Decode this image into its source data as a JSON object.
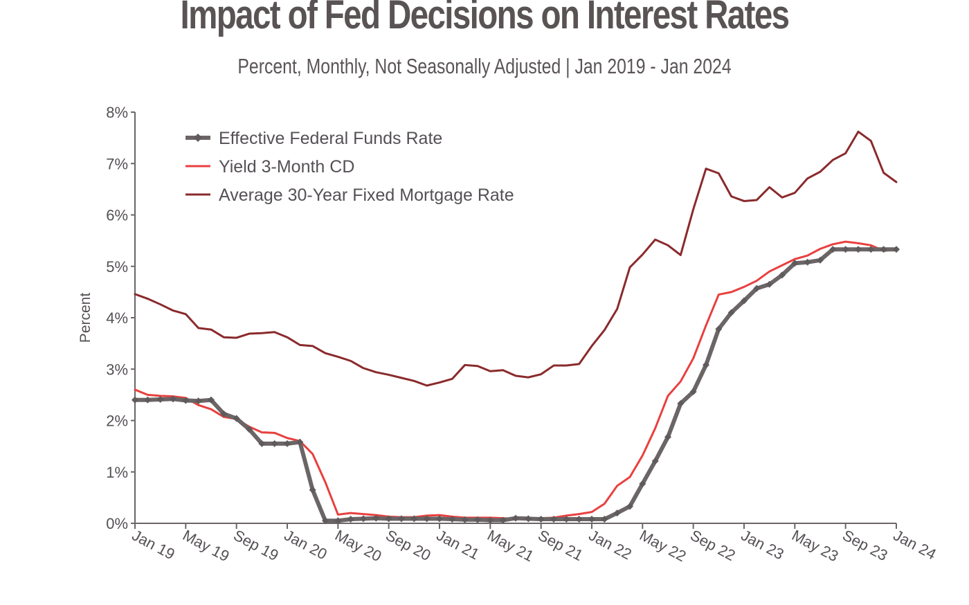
{
  "chart_data": {
    "type": "line",
    "title": "Impact of Fed Decisions on Interest Rates",
    "subtitle": "Percent, Monthly, Not Seasonally Adjusted | Jan 2019 - Jan 2024",
    "ylabel": "Percent",
    "xlabel": "",
    "ylim": [
      0,
      8
    ],
    "y_ticks": [
      "0%",
      "1%",
      "2%",
      "3%",
      "4%",
      "5%",
      "6%",
      "7%",
      "8%"
    ],
    "x_tick_labels": [
      "Jan 19",
      "May 19",
      "Sep 19",
      "Jan 20",
      "May 20",
      "Sep 20",
      "Jan 21",
      "May 21",
      "Sep 21",
      "Jan 22",
      "May 22",
      "Sep 22",
      "Jan 23",
      "May 23",
      "Sep 23",
      "Jan 24"
    ],
    "x_tick_every_months": 4,
    "x_start": "Jan 2019",
    "legend_position": "top-left",
    "grid": false,
    "series": [
      {
        "name": "Effective Federal Funds Rate",
        "color": "#6b6566",
        "marker": "diamond",
        "values": [
          2.4,
          2.4,
          2.41,
          2.42,
          2.39,
          2.38,
          2.4,
          2.13,
          2.04,
          1.83,
          1.55,
          1.55,
          1.55,
          1.58,
          0.65,
          0.05,
          0.05,
          0.08,
          0.09,
          0.1,
          0.09,
          0.09,
          0.09,
          0.09,
          0.09,
          0.08,
          0.07,
          0.07,
          0.06,
          0.06,
          0.1,
          0.09,
          0.08,
          0.08,
          0.08,
          0.08,
          0.08,
          0.08,
          0.2,
          0.33,
          0.77,
          1.21,
          1.68,
          2.33,
          2.56,
          3.08,
          3.78,
          4.1,
          4.33,
          4.57,
          4.65,
          4.83,
          5.06,
          5.08,
          5.12,
          5.33,
          5.33,
          5.33,
          5.33,
          5.33,
          5.33
        ]
      },
      {
        "name": "Yield 3-Month CD",
        "color": "#e8403f",
        "values": [
          2.6,
          2.5,
          2.48,
          2.47,
          2.44,
          2.3,
          2.22,
          2.07,
          2.03,
          1.88,
          1.77,
          1.76,
          1.66,
          1.6,
          1.35,
          0.8,
          0.17,
          0.2,
          0.18,
          0.16,
          0.13,
          0.12,
          0.12,
          0.15,
          0.16,
          0.13,
          0.11,
          0.11,
          0.11,
          0.1,
          0.09,
          0.09,
          0.1,
          0.11,
          0.15,
          0.18,
          0.22,
          0.38,
          0.73,
          0.9,
          1.32,
          1.85,
          2.48,
          2.76,
          3.21,
          3.85,
          4.45,
          4.5,
          4.6,
          4.72,
          4.9,
          5.02,
          5.14,
          5.21,
          5.34,
          5.43,
          5.48,
          5.45,
          5.41,
          5.3,
          5.33
        ]
      },
      {
        "name": "Average 30-Year Fixed Mortgage Rate",
        "color": "#8a2a2c",
        "values": [
          4.46,
          4.37,
          4.26,
          4.14,
          4.07,
          3.8,
          3.77,
          3.62,
          3.61,
          3.69,
          3.7,
          3.72,
          3.62,
          3.47,
          3.45,
          3.31,
          3.24,
          3.16,
          3.02,
          2.94,
          2.89,
          2.83,
          2.77,
          2.68,
          2.74,
          2.81,
          3.08,
          3.06,
          2.96,
          2.98,
          2.87,
          2.84,
          2.9,
          3.07,
          3.07,
          3.1,
          3.45,
          3.76,
          4.17,
          4.98,
          5.23,
          5.52,
          5.41,
          5.22,
          6.11,
          6.9,
          6.81,
          6.36,
          6.27,
          6.29,
          6.54,
          6.34,
          6.43,
          6.71,
          6.84,
          7.07,
          7.2,
          7.62,
          7.44,
          6.82,
          6.64
        ]
      }
    ]
  }
}
